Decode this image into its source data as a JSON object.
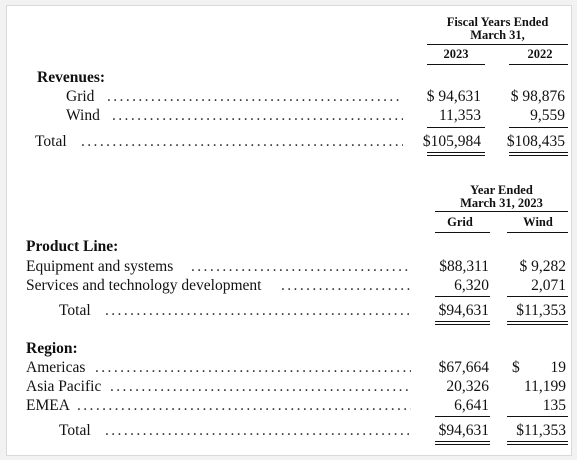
{
  "table1": {
    "header_line1": "Fiscal Years Ended",
    "header_line2": "March 31,",
    "col1": "2023",
    "col2": "2022",
    "section": "Revenues:",
    "rows": [
      {
        "label": "Grid",
        "v1": "$ 94,631",
        "v2": "$ 98,876"
      },
      {
        "label": "Wind",
        "v1": "11,353",
        "v2": "9,559"
      }
    ],
    "total": {
      "label": "Total",
      "v1": "$105,984",
      "v2": "$108,435"
    }
  },
  "table2": {
    "header_line1": "Year Ended",
    "header_line2": "March 31, 2023",
    "col1": "Grid",
    "col2": "Wind",
    "product_line": {
      "section": "Product Line:",
      "rows": [
        {
          "label": "Equipment and systems",
          "v1": "$88,311",
          "v2": "$ 9,282"
        },
        {
          "label": "Services and technology development",
          "v1": "6,320",
          "v2": "2,071"
        }
      ],
      "total": {
        "label": "Total",
        "v1": "$94,631",
        "v2": "$11,353"
      }
    },
    "region": {
      "section": "Region:",
      "rows": [
        {
          "label": "Americas",
          "v1": "$67,664",
          "v2": "$",
          "v2b": "19"
        },
        {
          "label": "Asia Pacific",
          "v1": "20,326",
          "v2": "11,199"
        },
        {
          "label": "EMEA",
          "v1": "6,641",
          "v2": "135"
        }
      ],
      "total": {
        "label": "Total",
        "v1": "$94,631",
        "v2": "$11,353"
      }
    }
  },
  "leader": "................................................................................................"
}
